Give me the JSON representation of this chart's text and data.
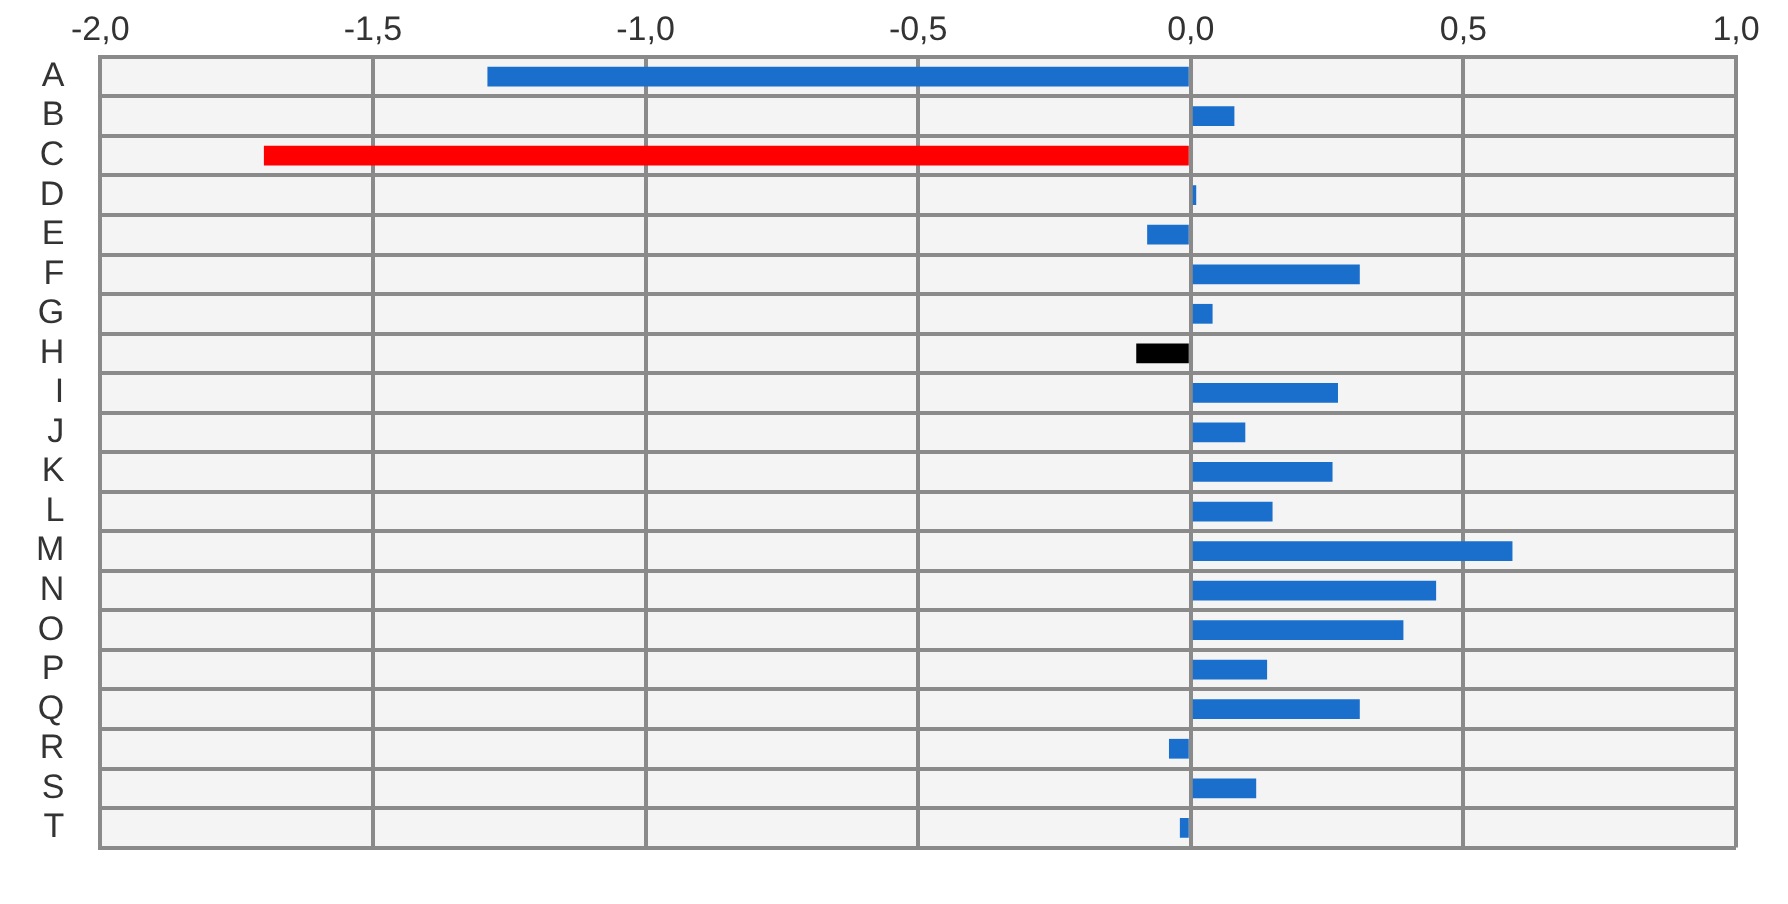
{
  "chart_data": {
    "type": "bar",
    "orientation": "horizontal",
    "categories": [
      "A",
      "B",
      "C",
      "D",
      "E",
      "F",
      "G",
      "H",
      "I",
      "J",
      "K",
      "L",
      "M",
      "N",
      "O",
      "P",
      "Q",
      "R",
      "S",
      "T"
    ],
    "values": [
      -1.29,
      0.08,
      -1.7,
      0.01,
      -0.08,
      0.31,
      0.04,
      -0.1,
      0.27,
      0.1,
      0.26,
      0.15,
      0.59,
      0.45,
      0.39,
      0.14,
      0.31,
      -0.04,
      0.12,
      -0.02
    ],
    "colors": [
      "#1a6fcc",
      "#1a6fcc",
      "#ff0000",
      "#1a6fcc",
      "#1a6fcc",
      "#1a6fcc",
      "#1a6fcc",
      "#000000",
      "#1a6fcc",
      "#1a6fcc",
      "#1a6fcc",
      "#1a6fcc",
      "#1a6fcc",
      "#1a6fcc",
      "#1a6fcc",
      "#1a6fcc",
      "#1a6fcc",
      "#1a6fcc",
      "#1a6fcc",
      "#1a6fcc"
    ],
    "xlim": [
      -2,
      1
    ],
    "xticks": [
      {
        "value": -2,
        "label": "-2,0"
      },
      {
        "value": -1.5,
        "label": "-1,5"
      },
      {
        "value": -1,
        "label": "-1,0"
      },
      {
        "value": -0.5,
        "label": "-0,5"
      },
      {
        "value": 0,
        "label": "0,0"
      },
      {
        "value": 0.5,
        "label": "0,5"
      },
      {
        "value": 1,
        "label": "1,0"
      }
    ],
    "grid": true,
    "legend": false
  }
}
